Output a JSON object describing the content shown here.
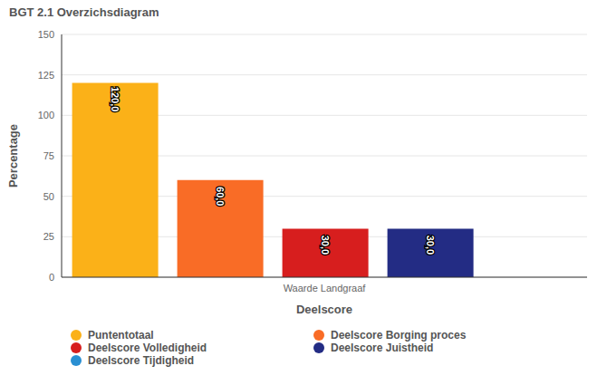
{
  "chart_data": {
    "type": "bar",
    "title": "BGT 2.1 Overzichsdiagram",
    "x_label": "Deelscore",
    "y_label": "Percentage",
    "categories": [
      "Waarde Landgraaf"
    ],
    "series": [
      {
        "name": "Puntentotaal",
        "color": "#fbb118",
        "values": [
          120
        ],
        "value_labels": [
          "120,0"
        ]
      },
      {
        "name": "Deelscore Borging proces",
        "color": "#f96c26",
        "values": [
          60
        ],
        "value_labels": [
          "60,0"
        ]
      },
      {
        "name": "Deelscore Volledigheid",
        "color": "#d71e1e",
        "values": [
          30
        ],
        "value_labels": [
          "30,0"
        ]
      },
      {
        "name": "Deelscore Juistheid",
        "color": "#232c84",
        "values": [
          30
        ],
        "value_labels": [
          "30,0"
        ]
      },
      {
        "name": "Deelscore Tijdigheid",
        "color": "#2a8fd2",
        "values": [
          null
        ],
        "value_labels": [
          null
        ]
      }
    ],
    "ylim": [
      0,
      150
    ],
    "yticks": [
      0,
      25,
      50,
      75,
      100,
      125,
      150
    ],
    "grid": true,
    "data_labels": true,
    "legend": "bottom"
  }
}
